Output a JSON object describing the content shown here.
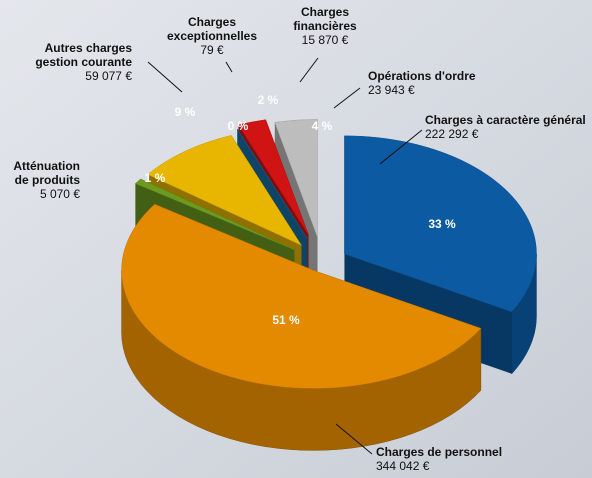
{
  "chart_data": {
    "type": "pie",
    "categories": [
      [
        "Charges à caractère général"
      ],
      [
        "Charges de personnel"
      ],
      [
        "Atténuation",
        "de produits"
      ],
      [
        "Autres charges",
        "gestion courante"
      ],
      [
        "Charges",
        "exceptionnelles"
      ],
      [
        "Charges",
        "financières"
      ],
      [
        "Opérations d'ordre"
      ]
    ],
    "values": [
      222292,
      344042,
      5070,
      59077,
      79,
      15870,
      23943
    ],
    "value_labels": [
      "222 292 €",
      "344 042 €",
      "5 070 €",
      "59 077 €",
      "79 €",
      "15 870 €",
      "23 943 €"
    ],
    "percent_labels": [
      "33 %",
      "51 %",
      "1 %",
      "9 %",
      "0 %",
      "2 %",
      "4 %"
    ],
    "colors": [
      "#0b5aa2",
      "#e38a00",
      "#6c9a1e",
      "#e8b600",
      "#1670a6",
      "#d01414",
      "#bdbdbd"
    ]
  }
}
